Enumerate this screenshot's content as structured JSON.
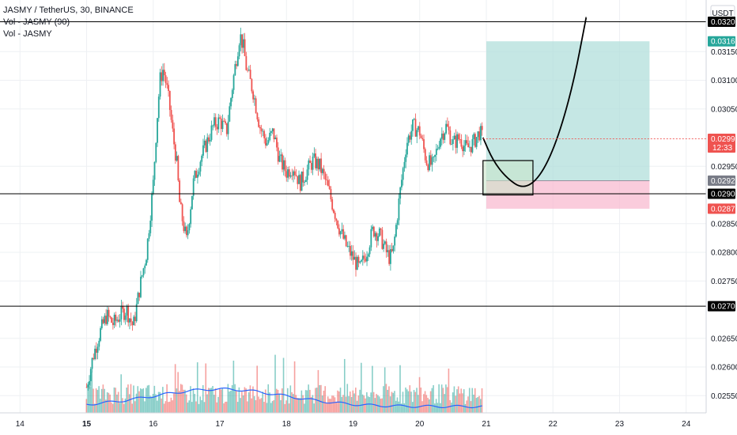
{
  "header": {
    "symbol_line": "JASMY / TetherUS, 30, BINANCE",
    "indicator1": "Vol - JASMY (90)",
    "indicator2": "Vol - JASMY"
  },
  "currency_label": "USDT",
  "colors": {
    "up": "#26a69a",
    "down": "#ef5350",
    "volume_ma": "#2962ff",
    "target_zone": "#b2dfdb",
    "stop_zone": "#f8bbd0",
    "hline": "#000000",
    "grid": "#eef0f3"
  },
  "chart_data": {
    "type": "candlestick",
    "ylim": [
      0.0252,
      0.0324
    ],
    "x_range": [
      13.7,
      24.3
    ],
    "x_ticks": [
      {
        "value": 14,
        "label": "14"
      },
      {
        "value": 15,
        "label": "15"
      },
      {
        "value": 16,
        "label": "16"
      },
      {
        "value": 17,
        "label": "17"
      },
      {
        "value": 18,
        "label": "18"
      },
      {
        "value": 19,
        "label": "19"
      },
      {
        "value": 20,
        "label": "20"
      },
      {
        "value": 21,
        "label": "21"
      },
      {
        "value": 22,
        "label": "22"
      },
      {
        "value": 23,
        "label": "23"
      },
      {
        "value": 24,
        "label": "24"
      }
    ],
    "y_ticks": [
      "0.03150",
      "0.03100",
      "0.03050",
      "0.02950",
      "0.02850",
      "0.02800",
      "0.02750",
      "0.02650",
      "0.02600",
      "0.02550"
    ],
    "price_path": [
      [
        15.0,
        0.02565
      ],
      [
        15.1,
        0.0262
      ],
      [
        15.2,
        0.0266
      ],
      [
        15.3,
        0.0269
      ],
      [
        15.4,
        0.02675
      ],
      [
        15.5,
        0.0269
      ],
      [
        15.6,
        0.027
      ],
      [
        15.7,
        0.0267
      ],
      [
        15.8,
        0.0274
      ],
      [
        15.9,
        0.028
      ],
      [
        16.0,
        0.0292
      ],
      [
        16.05,
        0.0302
      ],
      [
        16.1,
        0.031
      ],
      [
        16.15,
        0.0312
      ],
      [
        16.2,
        0.0309
      ],
      [
        16.25,
        0.0305
      ],
      [
        16.3,
        0.03
      ],
      [
        16.35,
        0.0296
      ],
      [
        16.4,
        0.0288
      ],
      [
        16.45,
        0.0285
      ],
      [
        16.5,
        0.0282
      ],
      [
        16.6,
        0.0292
      ],
      [
        16.7,
        0.0296
      ],
      [
        16.8,
        0.0299
      ],
      [
        16.9,
        0.0302
      ],
      [
        17.0,
        0.0303
      ],
      [
        17.1,
        0.0301
      ],
      [
        17.2,
        0.031
      ],
      [
        17.25,
        0.0314
      ],
      [
        17.3,
        0.0318
      ],
      [
        17.35,
        0.0316
      ],
      [
        17.4,
        0.0312
      ],
      [
        17.5,
        0.0308
      ],
      [
        17.6,
        0.0302
      ],
      [
        17.7,
        0.0299
      ],
      [
        17.8,
        0.0301
      ],
      [
        17.9,
        0.0296
      ],
      [
        18.0,
        0.0294
      ],
      [
        18.1,
        0.0295
      ],
      [
        18.2,
        0.0292
      ],
      [
        18.3,
        0.0294
      ],
      [
        18.4,
        0.0296
      ],
      [
        18.5,
        0.0295
      ],
      [
        18.6,
        0.0292
      ],
      [
        18.7,
        0.0288
      ],
      [
        18.8,
        0.0284
      ],
      [
        18.9,
        0.0281
      ],
      [
        19.0,
        0.0279
      ],
      [
        19.1,
        0.0277
      ],
      [
        19.2,
        0.028
      ],
      [
        19.3,
        0.0284
      ],
      [
        19.4,
        0.0283
      ],
      [
        19.5,
        0.028
      ],
      [
        19.55,
        0.0279
      ],
      [
        19.6,
        0.028
      ],
      [
        19.7,
        0.029
      ],
      [
        19.8,
        0.0299
      ],
      [
        19.9,
        0.0302
      ],
      [
        20.0,
        0.0301
      ],
      [
        20.1,
        0.0296
      ],
      [
        20.2,
        0.0295
      ],
      [
        20.3,
        0.03
      ],
      [
        20.4,
        0.0302
      ],
      [
        20.5,
        0.0299
      ],
      [
        20.6,
        0.03
      ],
      [
        20.7,
        0.0298
      ],
      [
        20.8,
        0.0299
      ],
      [
        20.9,
        0.0301
      ],
      [
        20.95,
        0.02998
      ]
    ],
    "volume_max_label": "",
    "horizontal_levels": [
      {
        "price": 0.03202,
        "label": "0.03202"
      },
      {
        "price": 0.02902,
        "label": "0.02902"
      },
      {
        "price": 0.02706,
        "label": "0.02706"
      }
    ],
    "position": {
      "entry": 0.02925,
      "target": 0.03168,
      "stop": 0.02876,
      "x_start": 21.0,
      "x_end": 23.45,
      "entry_label": "0.02925",
      "target_label": "0.03168",
      "stop_label": "0.02876"
    },
    "entry_box": {
      "x0": 20.95,
      "x1": 21.7,
      "y0": 0.029,
      "y1": 0.0296
    },
    "projection_curve": [
      [
        20.95,
        0.03
      ],
      [
        21.1,
        0.0296
      ],
      [
        21.3,
        0.0293
      ],
      [
        21.55,
        0.0291
      ],
      [
        21.8,
        0.0293
      ],
      [
        22.05,
        0.0299
      ],
      [
        22.3,
        0.0309
      ],
      [
        22.5,
        0.0321
      ]
    ],
    "last_price": {
      "price": 0.02998,
      "label": "0.02998",
      "countdown": "12:33"
    }
  }
}
